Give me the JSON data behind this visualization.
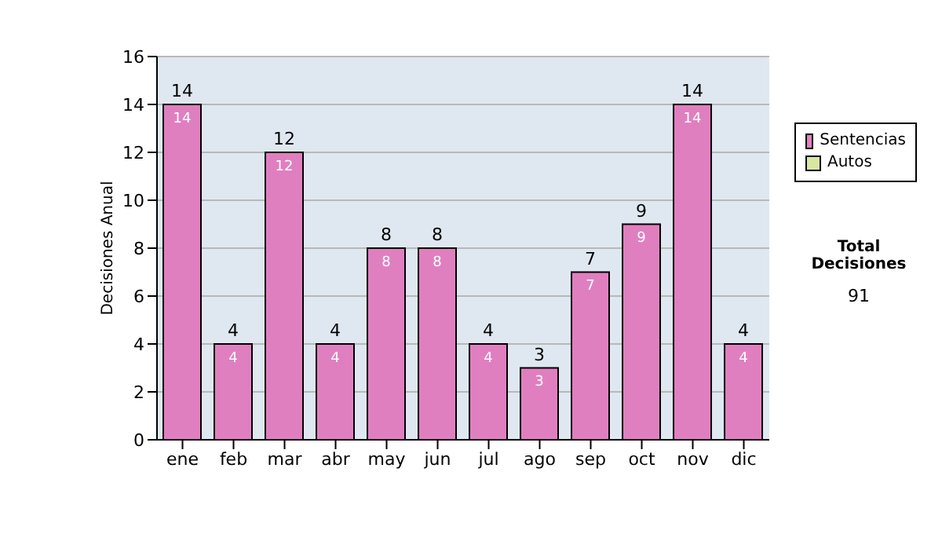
{
  "chart_data": {
    "type": "bar",
    "ylabel": "Decisiones Anual",
    "categories": [
      "ene",
      "feb",
      "mar",
      "abr",
      "may",
      "jun",
      "jul",
      "ago",
      "sep",
      "oct",
      "nov",
      "dic"
    ],
    "series": [
      {
        "name": "Sentencias",
        "color": "#e07fc0",
        "values": [
          14,
          4,
          12,
          4,
          8,
          8,
          4,
          3,
          7,
          9,
          14,
          4
        ],
        "value_labels": [
          "14",
          "4",
          "12",
          "4",
          "8",
          "8",
          "4",
          "3",
          "7",
          "9",
          "14",
          "4"
        ]
      },
      {
        "name": "Autos",
        "color": "#d8e8a0",
        "values": [
          0,
          0,
          0,
          0,
          0,
          0,
          0,
          0,
          0,
          0,
          0,
          0
        ]
      }
    ],
    "stacked": true,
    "totals": [
      "14",
      "4",
      "12",
      "4",
      "8",
      "8",
      "4",
      "3",
      "7",
      "9",
      "14",
      "4"
    ],
    "ylim": [
      0,
      16
    ],
    "yticks": [
      0,
      2,
      4,
      6,
      8,
      10,
      12,
      14,
      16
    ],
    "grid": "y",
    "legend": "right",
    "annotations": [
      "Total Decisiones",
      "91"
    ]
  }
}
